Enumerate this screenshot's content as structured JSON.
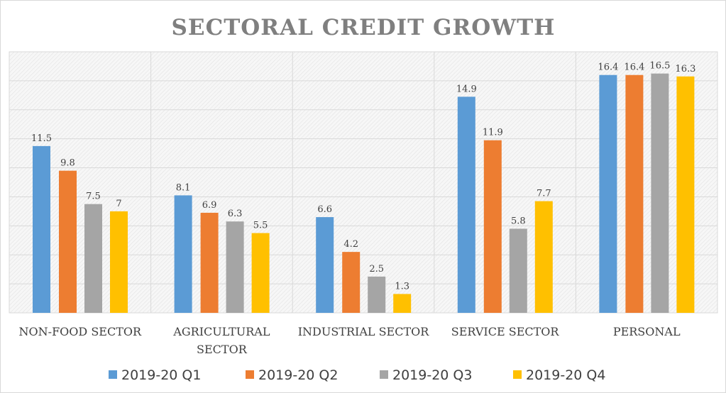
{
  "chart_data": {
    "type": "bar",
    "title": "SECTORAL CREDIT GROWTH",
    "categories": [
      [
        "NON-FOOD SECTOR"
      ],
      [
        "AGRICULTURAL",
        "SECTOR"
      ],
      [
        "INDUSTRIAL SECTOR"
      ],
      [
        "SERVICE SECTOR"
      ],
      [
        "PERSONAL"
      ]
    ],
    "series": [
      {
        "name": "2019-20 Q1",
        "color": "#5b9bd5",
        "values": [
          11.5,
          8.1,
          6.6,
          14.9,
          16.4
        ]
      },
      {
        "name": "2019-20 Q2",
        "color": "#ed7d31",
        "values": [
          9.8,
          6.9,
          4.2,
          11.9,
          16.4
        ]
      },
      {
        "name": "2019-20 Q3",
        "color": "#a5a5a5",
        "values": [
          7.5,
          6.3,
          2.5,
          5.8,
          16.5
        ]
      },
      {
        "name": "2019-20 Q4",
        "color": "#ffc000",
        "values": [
          7,
          5.5,
          1.3,
          7.7,
          16.3
        ]
      }
    ],
    "xlabel": "",
    "ylabel": "",
    "ylim": [
      0,
      18
    ],
    "ytick_step": 2,
    "grid": true,
    "legend": "bottom"
  }
}
